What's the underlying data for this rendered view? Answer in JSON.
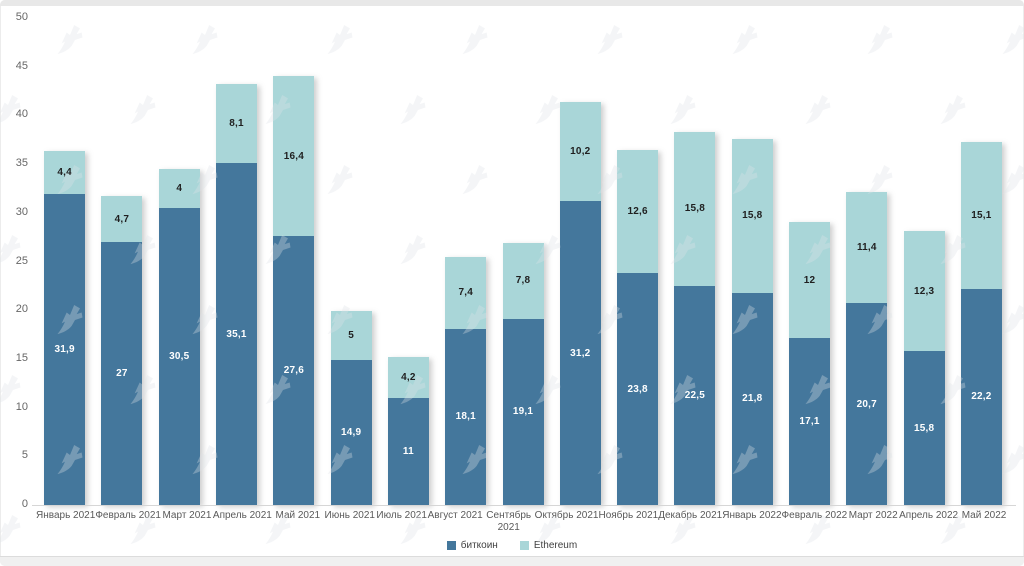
{
  "chart_data": {
    "type": "bar",
    "stacked": true,
    "title": "",
    "xlabel": "",
    "ylabel": "",
    "ylim": [
      0,
      50
    ],
    "y_ticks": [
      0,
      5,
      10,
      15,
      20,
      25,
      30,
      35,
      40,
      45,
      50
    ],
    "grid": false,
    "legend_position": "bottom",
    "categories": [
      "Январь 2021",
      "Февраль 2021",
      "Март 2021",
      "Апрель 2021",
      "Май 2021",
      "Июнь 2021",
      "Июль 2021",
      "Август 2021",
      "Сентябрь\n2021",
      "Октябрь 2021",
      "Ноябрь 2021",
      "Декабрь 2021",
      "Январь 2022",
      "Февраль 2022",
      "Март 2022",
      "Апрель 2022",
      "Май 2022"
    ],
    "series": [
      {
        "key": "bitcoin",
        "name": "биткоин",
        "color": "#44779c",
        "label_color": "#ffffff",
        "values": [
          31.9,
          27,
          30.5,
          35.1,
          27.6,
          14.9,
          11,
          18.1,
          19.1,
          31.2,
          23.8,
          22.5,
          21.8,
          17.1,
          20.7,
          15.8,
          22.2
        ],
        "labels": [
          "31,9",
          "27",
          "30,5",
          "35,1",
          "27,6",
          "14,9",
          "11",
          "18,1",
          "19,1",
          "31,2",
          "23,8",
          "22,5",
          "21,8",
          "17,1",
          "20,7",
          "15,8",
          "22,2"
        ]
      },
      {
        "key": "ethereum",
        "name": "Ethereum",
        "color": "#a9d6d8",
        "label_color": "#1f1f1f",
        "values": [
          4.4,
          4.7,
          4,
          8.1,
          16.4,
          5,
          4.2,
          7.4,
          7.8,
          10.2,
          12.6,
          15.8,
          15.8,
          12,
          11.4,
          12.3,
          15.1
        ],
        "labels": [
          "4,4",
          "4,7",
          "4",
          "8,1",
          "16,4",
          "5",
          "4,2",
          "7,4",
          "7,8",
          "10,2",
          "12,6",
          "15,8",
          "15,8",
          "12",
          "11,4",
          "12,3",
          "15,1"
        ]
      }
    ],
    "axis_color": "#d6d6d6",
    "tick_label_color": "#666666",
    "category_label_color": "#595959",
    "watermark_color": "#dfe3e8"
  }
}
